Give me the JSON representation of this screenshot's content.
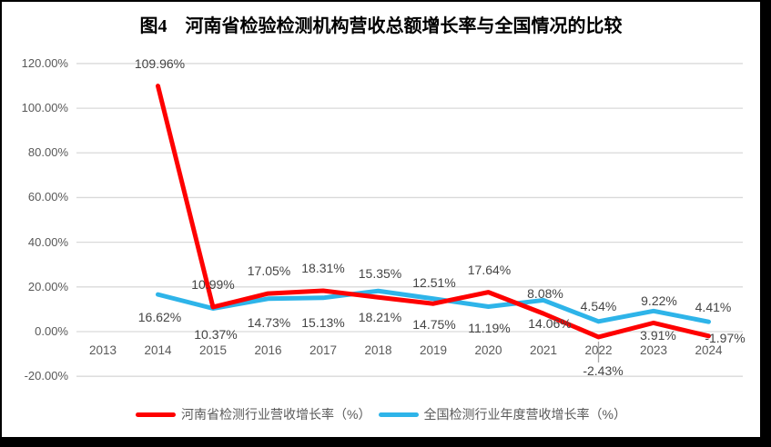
{
  "title": "图4　河南省检验检测机构营收总额增长率与全国情况的比较",
  "colors": {
    "henan": "#FE0000",
    "national": "#2EB4E9",
    "gridline": "#D9D9D9",
    "leader": "#A6A6A6",
    "axis_text": "#595959",
    "data_label_text": "#444444",
    "frame": "#000000",
    "background": "#FFFFFF"
  },
  "chart_data": {
    "type": "line",
    "categories": [
      "2013",
      "2014",
      "2015",
      "2016",
      "2017",
      "2018",
      "2019",
      "2020",
      "2021",
      "2022",
      "2023",
      "2024"
    ],
    "y_axis": {
      "tick_labels": [
        "120.00%",
        "100.00%",
        "80.00%",
        "60.00%",
        "40.00%",
        "20.00%",
        "0.00%",
        "-20.00%"
      ],
      "tick_values": [
        120,
        100,
        80,
        60,
        40,
        20,
        0,
        -20
      ],
      "ylim": [
        -20,
        120
      ]
    },
    "grid": "horizontal",
    "legend_position": "bottom",
    "series": [
      {
        "name": "河南省检测行业营收增长率（%）",
        "color_key": "henan",
        "values": [
          null,
          109.96,
          10.99,
          17.05,
          18.31,
          15.35,
          12.51,
          17.64,
          8.08,
          -2.43,
          3.91,
          -1.97
        ],
        "point_labels": [
          null,
          "109.96%",
          "10.99%",
          "17.05%",
          "18.31%",
          "15.35%",
          "12.51%",
          "17.64%",
          "8.08%",
          "-2.43%",
          "3.91%",
          "-1.97%"
        ],
        "label_offsets": [
          null,
          [
            2,
            -25
          ],
          [
            0,
            -25
          ],
          [
            1,
            -25
          ],
          [
            0,
            -25
          ],
          [
            2,
            -26
          ],
          [
            1,
            -23
          ],
          [
            1,
            -25
          ],
          [
            2,
            -22
          ],
          [
            5,
            37
          ],
          [
            5,
            14
          ],
          [
            18,
            2
          ]
        ]
      },
      {
        "name": "全国检测行业年度营收增长率（%）",
        "color_key": "national",
        "values": [
          null,
          16.62,
          10.37,
          14.73,
          15.13,
          18.21,
          14.75,
          11.19,
          14.06,
          4.54,
          9.22,
          4.41
        ],
        "point_labels": [
          null,
          "16.62%",
          "10.37%",
          "14.73%",
          "15.13%",
          "18.21%",
          "14.75%",
          "11.19%",
          "14.06%",
          "4.54%",
          "9.22%",
          "4.41%"
        ],
        "label_offsets": [
          null,
          [
            2,
            25
          ],
          [
            3,
            28
          ],
          [
            1,
            26
          ],
          [
            0,
            27
          ],
          [
            2,
            29
          ],
          [
            1,
            28
          ],
          [
            1,
            24
          ],
          [
            7,
            26
          ],
          [
            0,
            -17
          ],
          [
            6,
            -11
          ],
          [
            5,
            -16
          ]
        ]
      }
    ],
    "annotations": [
      {
        "type": "leader-line",
        "category": "2022",
        "series_index": 0
      }
    ]
  }
}
